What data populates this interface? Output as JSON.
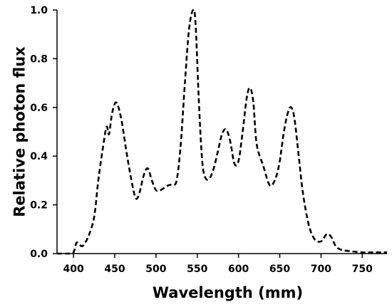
{
  "chart_data": {
    "type": "line",
    "title": "",
    "xlabel": "Wavelength (mm)",
    "ylabel": "Relative photon flux",
    "xlim": [
      380,
      780
    ],
    "ylim": [
      0,
      1.0
    ],
    "x_ticks": [
      400,
      450,
      500,
      550,
      600,
      650,
      700,
      750
    ],
    "y_ticks": [
      0.0,
      0.2,
      0.4,
      0.6,
      0.8,
      1.0
    ],
    "x_tick_labels": [
      "400",
      "450",
      "500",
      "550",
      "600",
      "650",
      "700",
      "750"
    ],
    "y_tick_labels": [
      "0.0",
      "0.2",
      "0.4",
      "0.6",
      "0.8",
      "1.0"
    ],
    "grid": false,
    "legend": "none",
    "line_style": "dashed",
    "line_color": "#000000",
    "series": [
      {
        "x": [
          380,
          390,
          395,
          400,
          403,
          405,
          410,
          413,
          418,
          425,
          430,
          435,
          440,
          443,
          447,
          452,
          458,
          465,
          472,
          476,
          480,
          485,
          490,
          495,
          500,
          505,
          510,
          515,
          520,
          525,
          530,
          535,
          540,
          545,
          548,
          552,
          556,
          560,
          565,
          570,
          575,
          580,
          585,
          590,
          595,
          600,
          605,
          610,
          614,
          618,
          622,
          630,
          638,
          645,
          650,
          655,
          660,
          664,
          668,
          673,
          678,
          685,
          692,
          700,
          707,
          712,
          718,
          725,
          735,
          750,
          765,
          780
        ],
        "y": [
          0.0,
          0.0,
          0.0,
          0.005,
          0.04,
          0.045,
          0.03,
          0.04,
          0.07,
          0.15,
          0.3,
          0.42,
          0.52,
          0.49,
          0.58,
          0.62,
          0.55,
          0.4,
          0.27,
          0.225,
          0.25,
          0.32,
          0.35,
          0.3,
          0.26,
          0.26,
          0.27,
          0.28,
          0.285,
          0.3,
          0.45,
          0.7,
          0.92,
          1.0,
          0.94,
          0.62,
          0.38,
          0.31,
          0.31,
          0.35,
          0.42,
          0.49,
          0.51,
          0.46,
          0.37,
          0.38,
          0.5,
          0.64,
          0.68,
          0.62,
          0.45,
          0.36,
          0.28,
          0.31,
          0.38,
          0.5,
          0.58,
          0.6,
          0.55,
          0.4,
          0.25,
          0.12,
          0.06,
          0.05,
          0.08,
          0.07,
          0.03,
          0.015,
          0.01,
          0.005,
          0.005,
          0.005
        ]
      }
    ]
  }
}
